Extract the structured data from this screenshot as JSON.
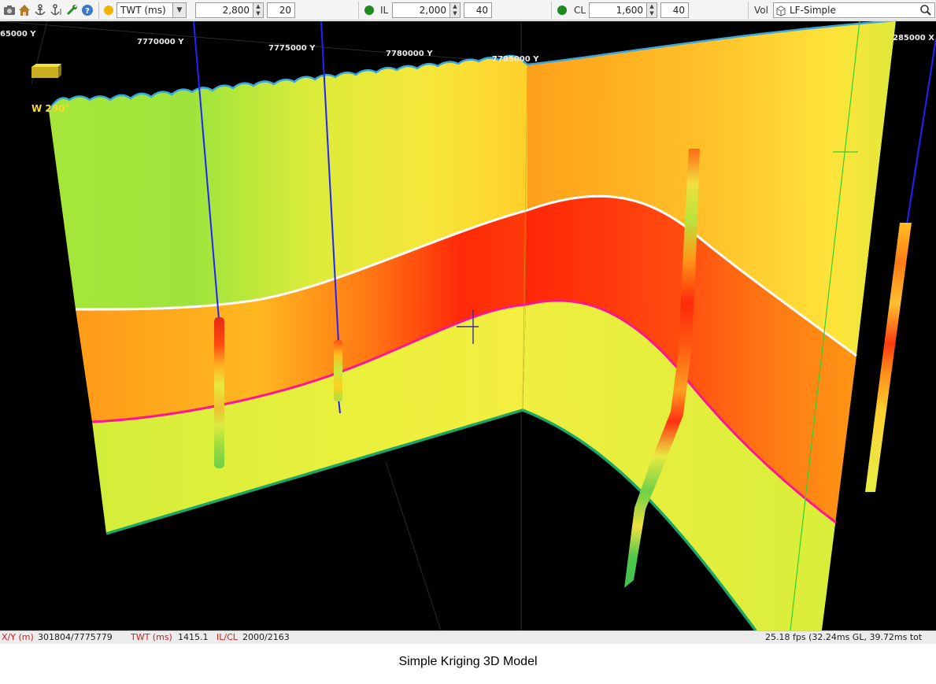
{
  "toolbar": {
    "icons": [
      "camera-icon",
      "home-icon",
      "anchor-icon",
      "anchor-pin-icon",
      "wrench-icon",
      "help-icon"
    ],
    "domain": {
      "selected": "TWT (ms)",
      "value": "2,800",
      "step": "20",
      "indicator_color": "#f0b400"
    },
    "inline": {
      "label": "IL",
      "value": "2,000",
      "step": "40",
      "indicator_color": "#1f8a1f"
    },
    "crossline": {
      "label": "CL",
      "value": "1,600",
      "step": "40",
      "indicator_color": "#1f8a1f"
    },
    "volume": {
      "label": "Vol",
      "selected": "LF-Simple"
    }
  },
  "viewport": {
    "axis_labels": [
      "65000 Y",
      "7770000 Y",
      "7775000 Y",
      "7780000 Y",
      "7785000 Y",
      "285000 X"
    ],
    "azimuth_label": "W 290°",
    "colors": {
      "top_horizon": "#ffffff",
      "middle_horizon": "#ff1493",
      "base_horizon": "#1aa86a",
      "seafloor": "#3aa7e0",
      "well_path": "#2222ff"
    }
  },
  "status": {
    "xy_label": "X/Y (m)",
    "xy_value": "301804/7775779",
    "twt_label": "TWT (ms)",
    "twt_value": "1415.1",
    "ilcl_label": "IL/CL",
    "ilcl_value": "2000/2163",
    "fps": "25.18 fps (32.24ms GL, 39.72ms tot"
  },
  "caption": "Simple Kriging 3D Model"
}
